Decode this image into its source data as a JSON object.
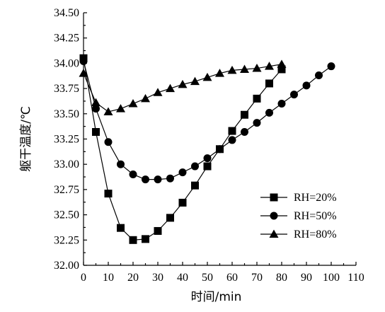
{
  "chart_data": {
    "type": "line",
    "xlabel": "时间/min",
    "ylabel": "躯干温度/℃",
    "xlim": [
      0,
      110
    ],
    "ylim": [
      32.0,
      34.5
    ],
    "x_ticks": [
      "0",
      "10",
      "20",
      "30",
      "40",
      "50",
      "60",
      "70",
      "80",
      "90",
      "100",
      "110"
    ],
    "y_ticks": [
      "32.00",
      "32.25",
      "32.50",
      "32.75",
      "33.00",
      "33.25",
      "33.50",
      "33.75",
      "34.00",
      "34.25",
      "34.50"
    ],
    "grid": false,
    "legend_position": "bottom-right",
    "series": [
      {
        "name": "RH=20%",
        "marker": "square",
        "x": [
          0,
          5,
          10,
          15,
          20,
          25,
          30,
          35,
          40,
          45,
          50,
          55,
          60,
          65,
          70,
          75,
          80
        ],
        "values": [
          34.05,
          33.32,
          32.71,
          32.37,
          32.25,
          32.26,
          32.34,
          32.47,
          32.62,
          32.79,
          32.98,
          33.15,
          33.33,
          33.49,
          33.65,
          33.8,
          33.94
        ]
      },
      {
        "name": "RH=50%",
        "marker": "circle",
        "x": [
          0,
          5,
          10,
          15,
          20,
          25,
          30,
          35,
          40,
          45,
          50,
          55,
          60,
          65,
          70,
          75,
          80,
          85,
          90,
          95,
          100
        ],
        "values": [
          34.02,
          33.55,
          33.22,
          33.0,
          32.9,
          32.85,
          32.85,
          32.86,
          32.92,
          32.98,
          33.06,
          33.15,
          33.24,
          33.32,
          33.41,
          33.51,
          33.6,
          33.69,
          33.78,
          33.88,
          33.97
        ]
      },
      {
        "name": "RH=80%",
        "marker": "triangle",
        "x": [
          0,
          5,
          10,
          15,
          20,
          25,
          30,
          35,
          40,
          45,
          50,
          55,
          60,
          65,
          70,
          75,
          80
        ],
        "values": [
          33.9,
          33.61,
          33.52,
          33.55,
          33.6,
          33.65,
          33.71,
          33.75,
          33.79,
          33.82,
          33.86,
          33.9,
          33.93,
          33.94,
          33.95,
          33.97,
          33.99
        ]
      }
    ]
  }
}
